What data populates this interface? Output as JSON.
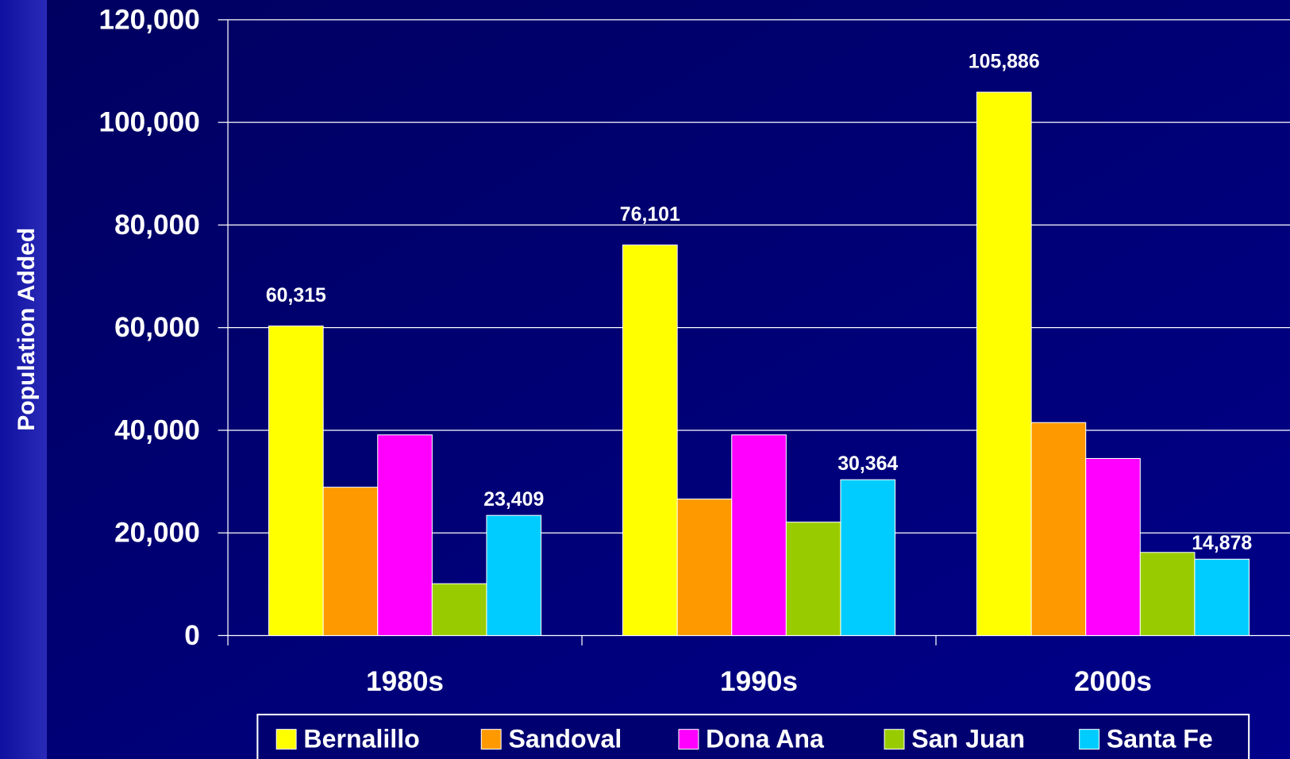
{
  "chart_data": {
    "type": "bar",
    "y_label": "Population Added",
    "categories": [
      "1980s",
      "1990s",
      "2000s"
    ],
    "series": [
      {
        "name": "Bernalillo",
        "color": "#ffff00",
        "values": [
          60315,
          76101,
          105886
        ],
        "value_labels": [
          "60,315",
          "76,101",
          "105,886"
        ]
      },
      {
        "name": "Sandoval",
        "color": "#ff9900",
        "values": [
          28900,
          26600,
          41500
        ]
      },
      {
        "name": "Dona Ana",
        "color": "#ff00ff",
        "values": [
          39100,
          39100,
          34500
        ]
      },
      {
        "name": "San Juan",
        "color": "#99cc00",
        "values": [
          10100,
          22100,
          16200
        ]
      },
      {
        "name": "Santa Fe",
        "color": "#00ccff",
        "values": [
          23409,
          30364,
          14878
        ],
        "value_labels": [
          "23,409",
          "30,364",
          "14,878"
        ]
      }
    ],
    "ylim": [
      0,
      120000
    ],
    "yticks": [
      0,
      {
        "value": 20000,
        "label": "20,000"
      },
      {
        "value": 40000,
        "label": "40,000"
      },
      {
        "value": 60000,
        "label": "60,000"
      },
      {
        "value": 80000,
        "label": "80,000"
      },
      {
        "value": 100000,
        "label": "100,000"
      },
      {
        "value": 120000,
        "label": "120,000"
      }
    ],
    "grid": true,
    "legend": "bottom"
  }
}
